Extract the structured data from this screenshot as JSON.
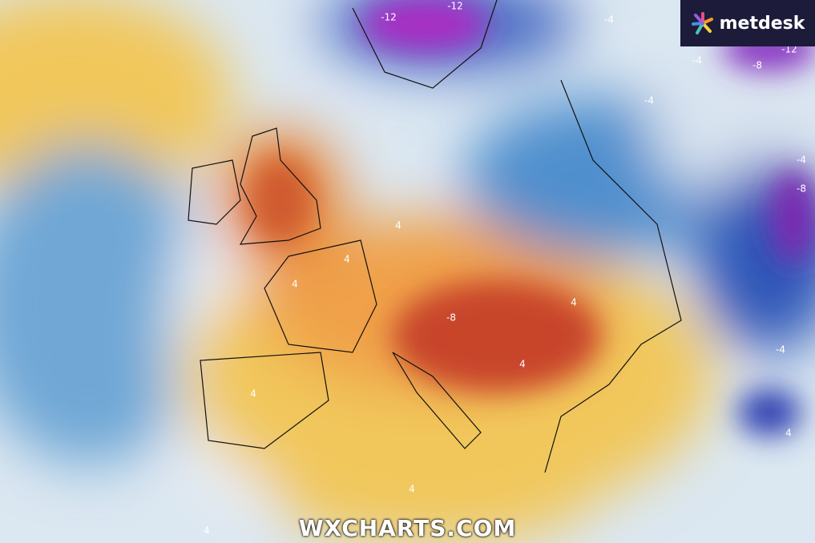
{
  "branding": {
    "logo": "metdesk",
    "watermark": "WXCHARTS.COM"
  },
  "contour_labels": [
    "-12",
    "-12",
    "-12",
    "-8",
    "-4",
    "-4",
    "-4",
    "-8",
    "4",
    "4",
    "4",
    "4",
    "-8",
    "4",
    "4",
    "-4",
    "4",
    "4",
    "4",
    "-4"
  ]
}
